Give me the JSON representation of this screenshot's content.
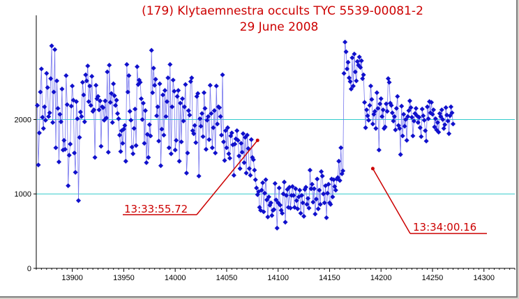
{
  "colors": {
    "series": "#1010cc",
    "series_line": "#7777ee",
    "threshold": "#33cccc",
    "annotation": "#cc0000",
    "axis": "#000000",
    "background": "#ffffff"
  },
  "chart_data": {
    "type": "line",
    "title": "(179) Klytaemnestra occults TYC 5539-00081-2",
    "subtitle": "29 June 2008",
    "xlabel": "",
    "ylabel": "",
    "xlim": [
      13865,
      14330
    ],
    "ylim": [
      0,
      3400
    ],
    "x_ticks": [
      13900,
      13950,
      14000,
      14050,
      14100,
      14150,
      14200,
      14250,
      14300
    ],
    "y_ticks": [
      0,
      1000,
      2000
    ],
    "reference_lines": [
      1000,
      2000
    ],
    "annotations": [
      {
        "label": "13:33:55.72",
        "x": 14080,
        "y": 1720
      },
      {
        "label": "13:34:00.16",
        "x": 14192,
        "y": 1340
      }
    ],
    "series": [
      {
        "x_start": 13866,
        "x_step": 1,
        "values": [
          2190,
          1390,
          1820,
          2370,
          2680,
          2030,
          1880,
          2170,
          1990,
          2620,
          2430,
          2040,
          2090,
          2550,
          2990,
          1960,
          2370,
          2940,
          1620,
          2520,
          2150,
          1430,
          2070,
          1970,
          2410,
          1590,
          1720,
          1600,
          2590,
          2200,
          1110,
          1520,
          1670,
          2180,
          2450,
          2260,
          1550,
          1290,
          2240,
          2010,
          910,
          1760,
          2100,
          2040,
          2500,
          2330,
          1970,
          2600,
          2520,
          2720,
          2240,
          2450,
          2190,
          2580,
          2110,
          2130,
          1490,
          2460,
          2280,
          2310,
          2130,
          2250,
          1640,
          2170,
          2160,
          1990,
          2250,
          2020,
          2640,
          1560,
          2730,
          2230,
          2350,
          1960,
          2480,
          2320,
          2190,
          2260,
          2080,
          2010,
          1790,
          1570,
          1850,
          1680,
          1870,
          1920,
          1440,
          2740,
          2370,
          2590,
          2110,
          1990,
          1630,
          1540,
          1880,
          2140,
          1650,
          2710,
          2470,
          2530,
          2500,
          2280,
          2000,
          2220,
          1680,
          2120,
          1420,
          1800,
          1490,
          1930,
          1780,
          2930,
          2360,
          2690,
          2460,
          2540,
          2050,
          2170,
          1710,
          2480,
          1380,
          1870,
          2330,
          1790,
          2390,
          2040,
          2240,
          2560,
          1620,
          2740,
          1540,
          2170,
          2530,
          2380,
          1590,
          1720,
          2310,
          2390,
          1440,
          2220,
          1700,
          2280,
          1980,
          2170,
          2470,
          1280,
          1550,
          2120,
          2060,
          2510,
          2560,
          1850,
          1810,
          1920,
          1690,
          2310,
          2350,
          1240,
          2010,
          1910,
          2080,
          1770,
          2360,
          2150,
          1600,
          1990,
          2040,
          1730,
          2460,
          2080,
          1620,
          1890,
          2120,
          1550,
          2450,
          1940,
          2170,
          2160,
          2040,
          1790,
          2600,
          1700,
          1450,
          1850,
          1620,
          1890,
          1540,
          1480,
          1780,
          1820,
          1660,
          1250,
          1670,
          1740,
          1850,
          1720,
          1510,
          1340,
          1680,
          1560,
          1810,
          1420,
          1760,
          1280,
          1790,
          1610,
          1340,
          1250,
          1730,
          1490,
          1460,
          1320,
          1190,
          1080,
          990,
          1030,
          820,
          780,
          1050,
          1150,
          760,
          1010,
          1190,
          920,
          690,
          960,
          850,
          880,
          710,
          780,
          790,
          1140,
          920,
          540,
          880,
          1080,
          850,
          780,
          740,
          1000,
          1160,
          620,
          980,
          1060,
          820,
          1090,
          810,
          980,
          1100,
          980,
          820,
          1070,
          910,
          800,
          960,
          1050,
          740,
          980,
          880,
          700,
          1060,
          1090,
          860,
          940,
          810,
          1320,
          1070,
          1130,
          890,
          1070,
          730,
          930,
          1200,
          800,
          1050,
          860,
          1300,
          1240,
          1000,
          880,
          1110,
          680,
          1010,
          1130,
          880,
          860,
          1200,
          960,
          1190,
          1100,
          1050,
          1200,
          1220,
          1440,
          1180,
          1620,
          1270,
          1310,
          2620,
          3040,
          2910,
          2680,
          2770,
          2560,
          2510,
          2410,
          2830,
          2450,
          2880,
          2640,
          2520,
          2780,
          2730,
          2840,
          2700,
          2790,
          2550,
          2600,
          2230,
          1890,
          2130,
          2050,
          1990,
          2190,
          2450,
          2270,
          1940,
          2070,
          2110,
          1880,
          2360,
          2150,
          1590,
          2210,
          2280,
          2040,
          2130,
          1880,
          1900,
          2210,
          2110,
          2550,
          2500,
          2220,
          2190,
          2090,
          1980,
          2040,
          1860,
          2150,
          2310,
          1920,
          1880,
          1530,
          2180,
          1780,
          2070,
          1910,
          2000,
          1720,
          2040,
          2120,
          2250,
          2160,
          2030,
          1780,
          1980,
          2080,
          2150,
          2050,
          1960,
          2030,
          1890,
          1770,
          2140,
          2050,
          1990,
          1850,
          1710,
          2170,
          2010,
          2240,
          2090,
          2230,
          2070,
          2130,
          1900,
          2010,
          1860,
          1960,
          1830,
          2080,
          2040,
          2130,
          2000,
          1880,
          1930,
          2160,
          2060,
          1980,
          1810,
          2050,
          2170,
          2090,
          1940
        ]
      }
    ]
  }
}
